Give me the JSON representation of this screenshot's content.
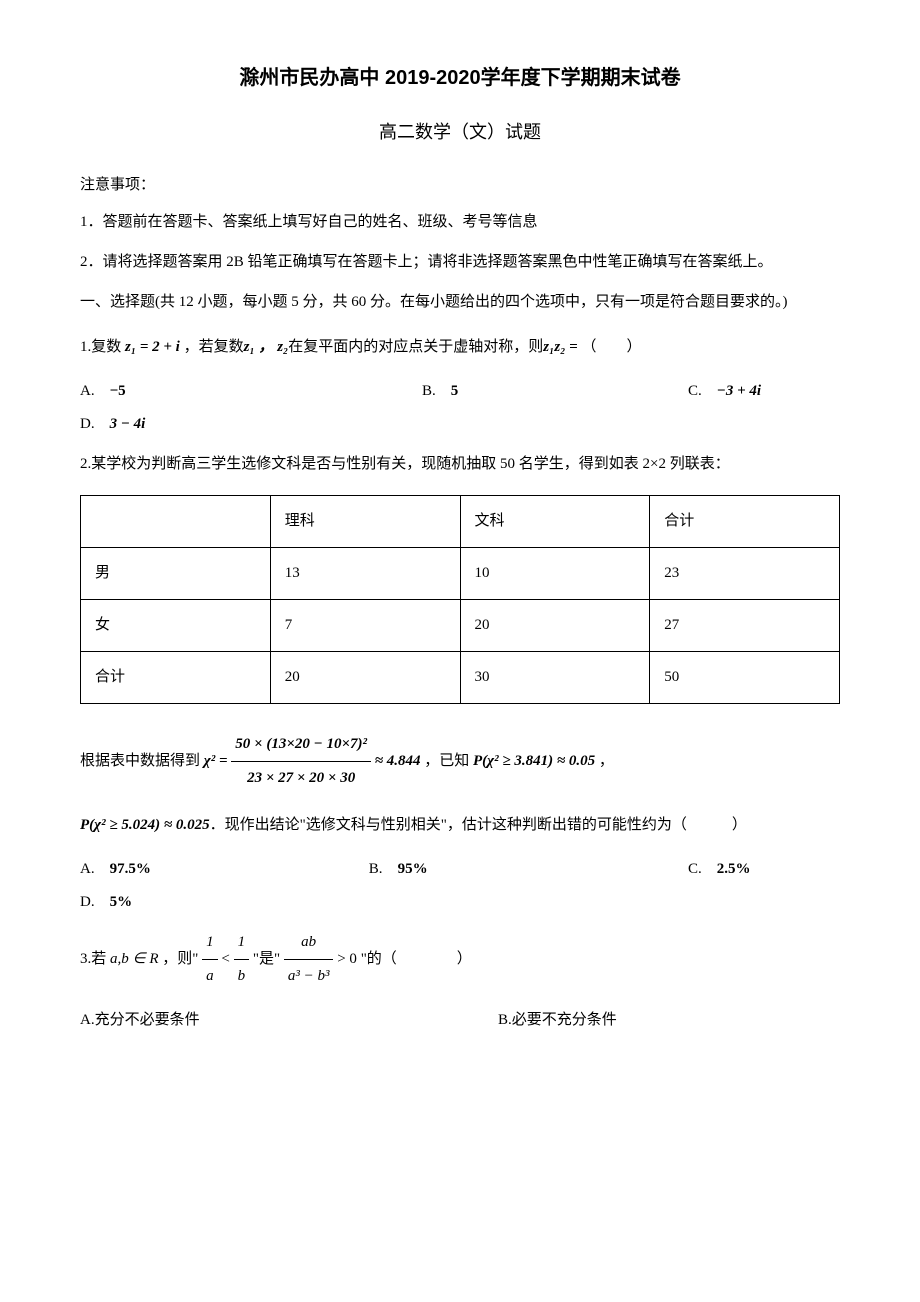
{
  "header": {
    "title": "滁州市民办高中 2019-2020学年度下学期期末试卷",
    "subtitle": "高二数学（文）试题"
  },
  "notice": {
    "heading": "注意事项：",
    "items": [
      "1．答题前在答题卡、答案纸上填写好自己的姓名、班级、考号等信息",
      "2．请将选择题答案用 2B 铅笔正确填写在答题卡上；请将非选择题答案黑色中性笔正确填写在答案纸上。"
    ]
  },
  "section1": {
    "heading": "一、选择题(共 12 小题，每小题 5 分，共 60 分。在每小题给出的四个选项中，只有一项是符合题目要求的。)"
  },
  "q1": {
    "prefix": "1.复数 ",
    "z1": "z₁ = 2 + i",
    "mid1": " ，若复数",
    "z1_lbl": "z₁ ，",
    "z2_lbl": " z₂",
    "mid2": "在复平面内的对应点关于虚轴对称，则",
    "z1z2": "z₁z₂ = ",
    "tail": "（　　）",
    "opt_a_label": "A.　",
    "opt_a": "−5",
    "opt_b_label": "B.　",
    "opt_b": "5",
    "opt_c_label": "C.　",
    "opt_c": "−3 + 4i",
    "opt_d_label": "D.　",
    "opt_d": "3 − 4i"
  },
  "q2": {
    "text": "2.某学校为判断高三学生选修文科是否与性别有关，现随机抽取 50 名学生，得到如表 2×2 列联表：",
    "table": {
      "headers": [
        "",
        "理科",
        "文科",
        "合计"
      ],
      "rows": [
        [
          "男",
          "13",
          "10",
          "23"
        ],
        [
          "女",
          "7",
          "20",
          "27"
        ],
        [
          "合计",
          "20",
          "30",
          "50"
        ]
      ]
    },
    "formula_prefix": "根据表中数据得到 ",
    "chi2_lhs": "χ² = ",
    "chi2_num": "50 × (13×20 − 10×7)²",
    "chi2_den": "23 × 27 × 20 × 30",
    "chi2_approx": " ≈ 4.844",
    "known_prefix": " ，已知 ",
    "p1": "P(χ² ≥ 3.841) ≈ 0.05",
    "comma": " ，",
    "p2": "P(χ² ≥ 5.024) ≈ 0.025",
    "conclusion": "．现作出结论\"选修文科与性别相关\"，估计这种判断出错的可能性约为（　　　）",
    "opt_a_label": "A.　",
    "opt_a": "97.5%",
    "opt_b_label": "B.　",
    "opt_b": "95%",
    "opt_c_label": "C.　",
    "opt_c": "2.5%",
    "opt_d_label": "D.　",
    "opt_d": "5%"
  },
  "q3": {
    "prefix": "3.若 ",
    "cond": "a,b ∈ R",
    "mid1": " ，则\" ",
    "frac1_num": "1",
    "frac1_den": "a",
    "lt": " < ",
    "frac2_num": "1",
    "frac2_den": "b",
    "mid2": " \"是\" ",
    "frac3_num": "ab",
    "frac3_den": "a³ − b³",
    "gt0": " > 0",
    "mid3": " \"的（　　　　）",
    "opt_a": "A.充分不必要条件",
    "opt_b": "B.必要不充分条件"
  }
}
